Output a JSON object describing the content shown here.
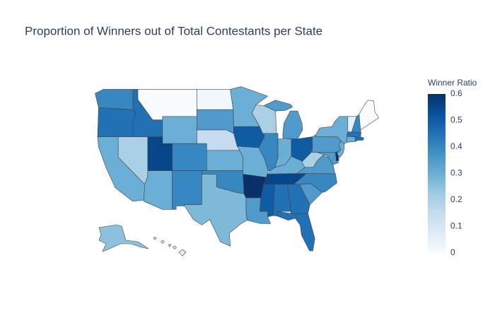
{
  "chart_data": {
    "type": "choropleth",
    "title": "Proportion of Winners out of Total Contestants per State",
    "colorbar_title": "Winner Ratio",
    "values": [
      0.4,
      0.45,
      0.3,
      0.2,
      0.45,
      0,
      0.3,
      0.55,
      0.3,
      0.4,
      0.4,
      0.02,
      0.35,
      0.15,
      0.3,
      0.4,
      0.27,
      0.3,
      0.5,
      0.3,
      0.6,
      0.35,
      0.2,
      0.4,
      0.35,
      0.3,
      0.5,
      0.3,
      0.55,
      0.5,
      0.45,
      0.45,
      0.45,
      0.35,
      0.4,
      0.35,
      0.2,
      0.35,
      0.6,
      0.35,
      0.3,
      0.3,
      0.3,
      0.45,
      0.45,
      0.05,
      0.4,
      0,
      0.25,
      0.05
    ],
    "zlim": [
      0,
      0.6
    ],
    "zticks": [
      0,
      0.1,
      0.2,
      0.3,
      0.4,
      0.5,
      0.6
    ],
    "colorscale": [
      "rgb(247,251,255)",
      "rgb(222,235,247)",
      "rgb(198,219,239)",
      "rgb(158,202,225)",
      "rgb(107,174,214)",
      "rgb(66,146,198)",
      "rgb(33,113,181)",
      "rgb(8,81,156)",
      "rgb(8,48,107)"
    ]
  }
}
